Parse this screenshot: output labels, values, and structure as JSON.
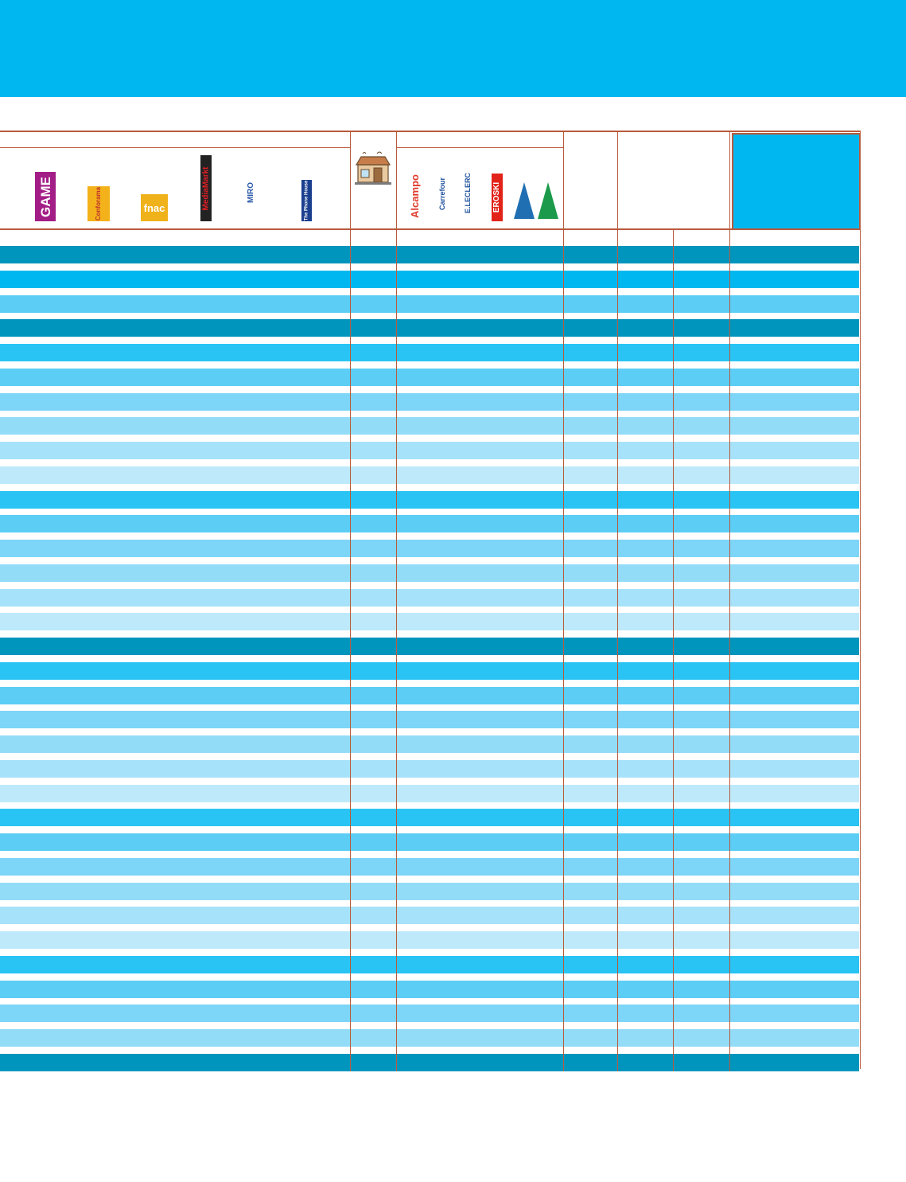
{
  "header": {
    "banner_color": "#00b7ef",
    "rule_color": "#b85a3c"
  },
  "specialist_logos": [
    {
      "name": "game-logo",
      "text": "GAME",
      "bg": "#a31d86",
      "fg": "#ffffff"
    },
    {
      "name": "conforama-logo",
      "text": "Conforama",
      "bg": "#f3b21a",
      "fg": "#c0342a"
    },
    {
      "name": "fnac-logo",
      "text": "fnac",
      "bg": "#f0b21b",
      "fg": "#ffffff"
    },
    {
      "name": "media-markt-logo",
      "text": "MediaMarkt",
      "bg": "#222222",
      "fg": "#e41e26"
    },
    {
      "name": "miro-logo",
      "text": "MIRO",
      "bg": "#ffffff",
      "fg": "#2b5aa8"
    },
    {
      "name": "phone-house-logo",
      "text": "The Phone House",
      "bg": "#1b3f8f",
      "fg": "#ffffff"
    }
  ],
  "hypermarket_logos": [
    {
      "name": "alcampo-logo",
      "text": "Alcampo",
      "bg": "#ffffff",
      "fg": "#e03a2b"
    },
    {
      "name": "carrefour-logo",
      "text": "Carrefour",
      "bg": "#ffffff",
      "fg": "#1c4f9c"
    },
    {
      "name": "leclerc-logo",
      "text": "E.LECLERC",
      "bg": "#ffffff",
      "fg": "#1c4f9c"
    },
    {
      "name": "eroski-logo",
      "text": "EROSKI",
      "bg": "#e2231a",
      "fg": "#ffffff"
    }
  ],
  "dept_store_logos": [
    {
      "name": "hipercor-logo",
      "color": "#1f6fb2"
    },
    {
      "name": "el-corte-ingles-logo",
      "color": "#1a9a4a"
    }
  ],
  "row_colors": [
    "#0095bd",
    "#00b7ef",
    "#5ccdf5",
    "#0095bd",
    "#29c4f3",
    "#5ccdf5",
    "#7dd5f7",
    "#93dcf8",
    "#a6e2f9",
    "#bde9fb",
    "#29c4f3",
    "#5ccdf5",
    "#7dd5f7",
    "#93dcf8",
    "#a6e2f9",
    "#bde9fb",
    "#0095bd",
    "#29c4f3",
    "#5ccdf5",
    "#7dd5f7",
    "#93dcf8",
    "#a6e2f9",
    "#bde9fb",
    "#29c4f3",
    "#5ccdf5",
    "#7dd5f7",
    "#93dcf8",
    "#a6e2f9",
    "#bde9fb",
    "#29c4f3",
    "#5ccdf5",
    "#7dd5f7",
    "#93dcf8",
    "#0095bd"
  ]
}
